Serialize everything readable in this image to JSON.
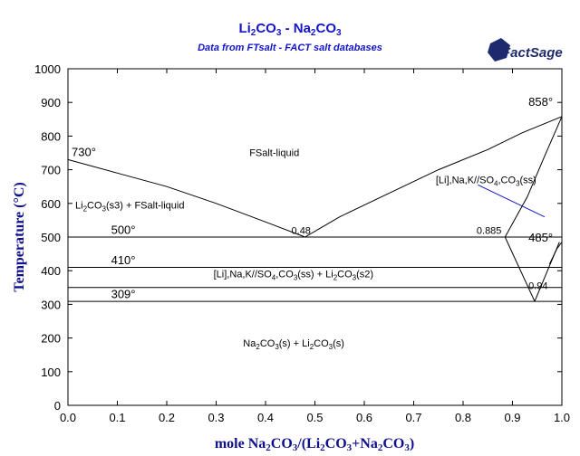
{
  "chart_data": {
    "type": "line",
    "title": "Li2CO3 - Na2CO3",
    "title_parts": [
      "Li",
      "2",
      "CO",
      "3",
      " - Na",
      "2",
      "CO",
      "3"
    ],
    "subtitle": "Data from FTsalt - FACT salt databases",
    "logo_text": "FactSage",
    "xlabel_parts": [
      "mole Na",
      "2",
      "CO",
      "3",
      "/(Li",
      "2",
      "CO",
      "3",
      "+Na",
      "2",
      "CO",
      "3",
      ")"
    ],
    "ylabel": "Temperature (°C)",
    "ylabel_parts": [
      "Temperature (",
      "°",
      "C)"
    ],
    "xlim": [
      0,
      1
    ],
    "ylim": [
      0,
      1000
    ],
    "xticks": [
      "0.0",
      "0.1",
      "0.2",
      "0.3",
      "0.4",
      "0.5",
      "0.6",
      "0.7",
      "0.8",
      "0.9",
      "1.0"
    ],
    "xtick_values": [
      0,
      0.1,
      0.2,
      0.3,
      0.4,
      0.5,
      0.6,
      0.7,
      0.8,
      0.9,
      1.0
    ],
    "yticks": [
      "0",
      "100",
      "200",
      "300",
      "400",
      "500",
      "600",
      "700",
      "800",
      "900",
      "1000"
    ],
    "ytick_values": [
      0,
      100,
      200,
      300,
      400,
      500,
      600,
      700,
      800,
      900,
      1000
    ],
    "grid": false,
    "series": [
      {
        "color": "#000000",
        "points": [
          [
            0.0,
            730
          ],
          [
            0.1,
            690
          ],
          [
            0.2,
            650
          ],
          [
            0.3,
            600
          ],
          [
            0.4,
            545
          ],
          [
            0.48,
            500
          ]
        ]
      },
      {
        "color": "#000000",
        "points": [
          [
            0.48,
            500
          ],
          [
            0.55,
            560
          ],
          [
            0.65,
            630
          ],
          [
            0.75,
            700
          ],
          [
            0.85,
            760
          ],
          [
            0.92,
            810
          ],
          [
            1.0,
            858
          ]
        ]
      },
      {
        "color": "#000000",
        "points": [
          [
            0.0,
            500
          ],
          [
            1.0,
            500
          ]
        ]
      },
      {
        "color": "#000000",
        "points": [
          [
            0.0,
            410
          ],
          [
            1.0,
            410
          ]
        ]
      },
      {
        "color": "#000000",
        "points": [
          [
            0.0,
            350
          ],
          [
            1.0,
            350
          ]
        ]
      },
      {
        "color": "#000000",
        "points": [
          [
            0.0,
            309
          ],
          [
            1.0,
            309
          ]
        ]
      },
      {
        "color": "#000000",
        "points": [
          [
            0.885,
            500
          ],
          [
            0.945,
            309
          ]
        ]
      },
      {
        "color": "#000000",
        "points": [
          [
            0.945,
            309
          ],
          [
            0.995,
            485
          ]
        ]
      },
      {
        "color": "#000000",
        "points": [
          [
            0.885,
            500
          ],
          [
            0.93,
            620
          ],
          [
            0.965,
            740
          ],
          [
            1.0,
            858
          ]
        ]
      },
      {
        "color": "#000000",
        "points": [
          [
            0.975,
            420
          ],
          [
            0.99,
            465
          ],
          [
            1.0,
            485
          ]
        ]
      },
      {
        "color": "#1414c8",
        "points": [
          [
            0.83,
            655
          ],
          [
            0.965,
            560
          ]
        ]
      }
    ],
    "annotations": [
      {
        "text": "730°",
        "x": 0.0,
        "y": 740,
        "style": "big"
      },
      {
        "text": "858°",
        "x": 0.925,
        "y": 890,
        "style": "big"
      },
      {
        "text": "500°",
        "x": 0.08,
        "y": 510,
        "style": "big"
      },
      {
        "text": "410°",
        "x": 0.08,
        "y": 420,
        "style": "big"
      },
      {
        "text": "309°",
        "x": 0.08,
        "y": 318,
        "style": "big"
      },
      {
        "text": "485°",
        "x": 0.925,
        "y": 487,
        "style": "big"
      },
      {
        "text": "0.48",
        "x": 0.445,
        "y": 510,
        "style": "small"
      },
      {
        "text": "0.885",
        "x": 0.82,
        "y": 510,
        "style": "small"
      },
      {
        "text": "0.94",
        "x": 0.925,
        "y": 346,
        "style": "small"
      },
      {
        "text": "FSalt-liquid",
        "x": 0.36,
        "y": 740,
        "style": "small"
      }
    ],
    "rich_labels": [
      {
        "x": 0.0,
        "y": 585,
        "color": "#000000",
        "parts": [
          "Li",
          "2",
          "CO",
          "3",
          "(s3) + FSalt-liquid"
        ]
      },
      {
        "x": 0.73,
        "y": 660,
        "color": "#1414c8",
        "parts": [
          "[Li],Na,K//SO",
          "4",
          ",CO",
          "3",
          "(ss)"
        ]
      },
      {
        "x": 0.28,
        "y": 380,
        "color": "#000000",
        "parts": [
          "[Li],Na,K//SO",
          "4",
          ",CO",
          "3",
          "(ss) + Li",
          "2",
          "CO",
          "3",
          "(s2)"
        ]
      },
      {
        "x": 0.34,
        "y": 175,
        "color": "#000000",
        "parts": [
          "Na",
          "2",
          "CO",
          "3",
          "(s) + Li",
          "2",
          "CO",
          "3",
          "(s)"
        ]
      }
    ]
  }
}
